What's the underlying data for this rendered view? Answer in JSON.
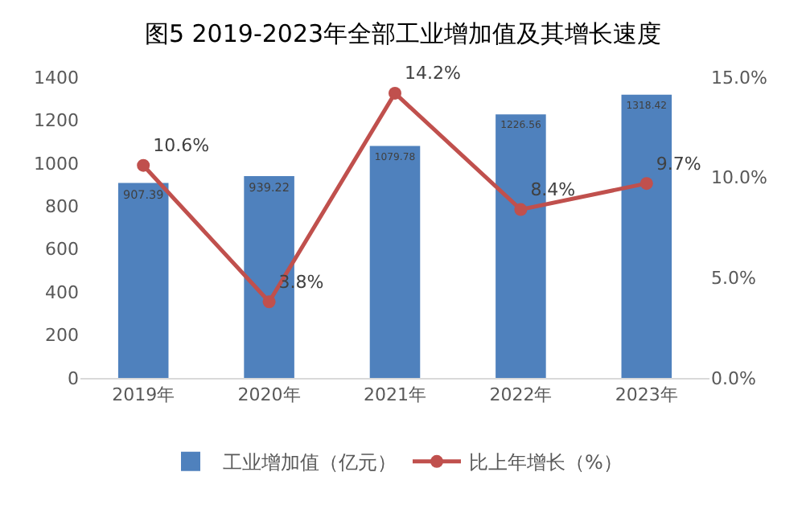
{
  "chart_data": {
    "type": "bar",
    "title": "图5 2019-2023年全部工业增加值及其增长速度",
    "categories": [
      "2019年",
      "2020年",
      "2021年",
      "2022年",
      "2023年"
    ],
    "series": [
      {
        "name": "工业增加值（亿元）",
        "color": "#4f81bd",
        "values": [
          907.39,
          939.22,
          1079.78,
          1226.56,
          1318.42
        ],
        "value_labels": [
          "907.39",
          "939.22",
          "1079.78",
          "1226.56",
          "1318.42"
        ]
      },
      {
        "name": "比上年增长（%）",
        "type": "line",
        "axis": "y2",
        "color": "#c0504d",
        "values": [
          10.6,
          3.8,
          14.2,
          8.4,
          9.7
        ],
        "value_labels": [
          "10.6%",
          "3.8%",
          "14.2%",
          "8.4%",
          "9.7%"
        ]
      }
    ],
    "ylim": [
      0,
      1400
    ],
    "yticks": [
      0,
      200,
      400,
      600,
      800,
      1000,
      1200,
      1400
    ],
    "y2lim": [
      0,
      15
    ],
    "y2ticks": [
      {
        "value": 0,
        "label": "0.0%"
      },
      {
        "value": 5,
        "label": "5.0%"
      },
      {
        "value": 10,
        "label": "10.0%"
      },
      {
        "value": 15,
        "label": "15.0%"
      }
    ],
    "legend": "bottom",
    "marker": "circle"
  }
}
